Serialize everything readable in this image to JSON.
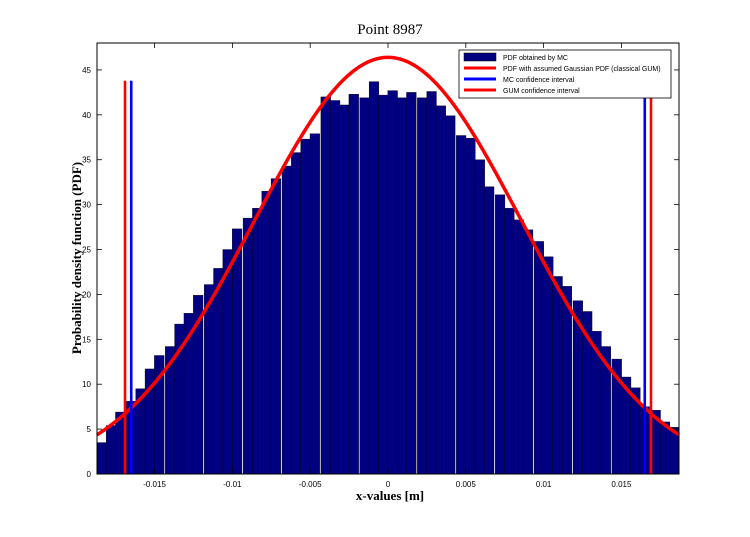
{
  "chart_data": {
    "type": "bar",
    "title": "Point 8987",
    "xlabel": "x-values [m]",
    "ylabel": "Probability density function (PDF)",
    "xlim": [
      -0.0187,
      0.0187
    ],
    "ylim": [
      0,
      48
    ],
    "xticks": [
      -0.015,
      -0.01,
      -0.005,
      0,
      0.005,
      0.01,
      0.015
    ],
    "xtick_labels": [
      "-0.015",
      "-0.01",
      "-0.005",
      "0",
      "0.005",
      "0.01",
      "0.015"
    ],
    "yticks": [
      0,
      5,
      10,
      15,
      20,
      25,
      30,
      35,
      40,
      45
    ],
    "ytick_labels": [
      "0",
      "5",
      "10",
      "15",
      "20",
      "25",
      "30",
      "35",
      "40",
      "45"
    ],
    "grid": false,
    "legend_position": "top-right",
    "histogram": {
      "name": "PDF obtained by MC",
      "color": "#000080",
      "bin_width": 0.000625,
      "bin_centers": [
        -0.0184,
        -0.0178,
        -0.0172,
        -0.0165,
        -0.0159,
        -0.0153,
        -0.0147,
        -0.014,
        -0.0134,
        -0.0128,
        -0.0122,
        -0.0115,
        -0.0109,
        -0.0103,
        -0.0097,
        -0.009,
        -0.0084,
        -0.0078,
        -0.0072,
        -0.0065,
        -0.0059,
        -0.0053,
        -0.0047,
        -0.004,
        -0.0034,
        -0.0028,
        -0.0022,
        -0.0015,
        -0.0009,
        -0.0003,
        0.0003,
        0.0009,
        0.0015,
        0.0022,
        0.0028,
        0.0034,
        0.004,
        0.0047,
        0.0053,
        0.0059,
        0.0065,
        0.0072,
        0.0078,
        0.0084,
        0.009,
        0.0097,
        0.0103,
        0.0109,
        0.0115,
        0.0122,
        0.0128,
        0.0134,
        0.014,
        0.0147,
        0.0153,
        0.0159,
        0.0165,
        0.0172,
        0.0178,
        0.0184
      ],
      "values": [
        3.5,
        5.4,
        6.9,
        8.1,
        9.5,
        11.7,
        13.2,
        14.2,
        16.7,
        17.9,
        19.9,
        21.1,
        22.9,
        25.0,
        27.3,
        28.5,
        29.6,
        31.5,
        32.9,
        34.3,
        35.8,
        37.3,
        37.9,
        42.0,
        41.6,
        41.1,
        42.3,
        41.9,
        43.7,
        42.2,
        42.7,
        41.9,
        42.5,
        41.9,
        42.6,
        41.0,
        39.9,
        37.7,
        37.4,
        35.0,
        32.0,
        31.1,
        29.6,
        28.3,
        27.2,
        25.9,
        24.2,
        22.0,
        20.9,
        19.3,
        18.1,
        15.9,
        14.2,
        12.8,
        10.8,
        9.6,
        7.5,
        7.1,
        5.8,
        5.2
      ]
    },
    "gaussian": {
      "name": "PDF with assumed Gaussian PDF (classical GUM)",
      "color": "#ff0000",
      "mean": 0,
      "sigma": 0.0086,
      "peak": 46.4
    },
    "mc_interval": {
      "name": "MC confidence interval",
      "color": "#0000ff",
      "values": [
        -0.0165,
        0.0165
      ]
    },
    "gum_interval": {
      "name": "GUM confidence interval",
      "color": "#ff0000",
      "values": [
        -0.0169,
        0.0169
      ]
    }
  }
}
